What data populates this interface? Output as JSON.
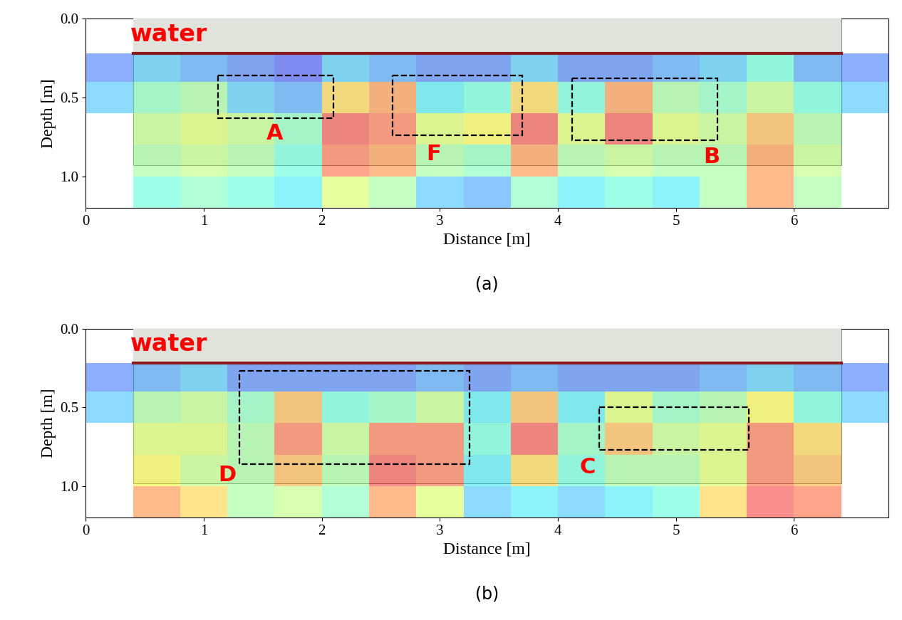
{
  "chart_data": [
    {
      "type": "heatmap",
      "panel_label": "(a)",
      "xlabel": "Distance [m]",
      "ylabel": "Depth [m]",
      "xlim": [
        0,
        6.8
      ],
      "ylim": [
        1.2,
        0.0
      ],
      "xticks": [
        0,
        1,
        2,
        3,
        4,
        5,
        6
      ],
      "yticks": [
        0.0,
        0.5,
        1.0
      ],
      "water": {
        "text": "water",
        "text_x": 0.38,
        "text_y": 0.1,
        "x": [
          0.4,
          6.4
        ],
        "depth": [
          0.0,
          0.22
        ]
      },
      "radargram": {
        "x": [
          0.4,
          6.4
        ],
        "depth": [
          0.0,
          0.93
        ]
      },
      "cells": {
        "x_edges": [
          0.0,
          0.4,
          0.8,
          1.2,
          1.6,
          2.0,
          2.4,
          2.8,
          3.2,
          3.6,
          4.0,
          4.4,
          4.8,
          5.2,
          5.6,
          6.0,
          6.4,
          6.8
        ],
        "depth_edges": [
          0.22,
          0.4,
          0.6,
          0.8,
          1.0,
          1.2
        ],
        "color_range": [
          0,
          1
        ],
        "values": [
          [
            0.2,
            0.3,
            0.25,
            0.2,
            0.15,
            0.3,
            0.25,
            0.2,
            0.2,
            0.3,
            0.2,
            0.2,
            0.25,
            0.3,
            0.4,
            0.25,
            0.2
          ],
          [
            0.3,
            0.45,
            0.5,
            0.3,
            0.25,
            0.7,
            0.8,
            0.35,
            0.4,
            0.7,
            0.4,
            0.8,
            0.5,
            0.45,
            0.55,
            0.4,
            0.3
          ],
          [
            null,
            0.55,
            0.6,
            0.55,
            0.45,
            0.9,
            0.85,
            0.6,
            0.65,
            0.9,
            0.6,
            0.9,
            0.6,
            0.55,
            0.75,
            0.5,
            null
          ],
          [
            null,
            0.5,
            0.55,
            0.5,
            0.4,
            0.85,
            0.8,
            0.5,
            0.45,
            0.8,
            0.5,
            0.55,
            0.5,
            0.5,
            0.8,
            0.55,
            null
          ],
          [
            null,
            0.4,
            0.45,
            0.4,
            0.35,
            0.6,
            0.5,
            0.3,
            0.25,
            0.45,
            0.35,
            0.4,
            0.35,
            0.5,
            0.8,
            0.5,
            null
          ]
        ]
      },
      "annotations": [
        {
          "text": "A",
          "x": 1.6,
          "y": 0.73,
          "box": [
            1.12,
            2.1,
            0.36,
            0.63
          ]
        },
        {
          "text": "F",
          "x": 2.95,
          "y": 0.86,
          "box": [
            2.6,
            3.7,
            0.36,
            0.74
          ]
        },
        {
          "text": "B",
          "x": 5.3,
          "y": 0.88,
          "box": [
            4.12,
            5.35,
            0.38,
            0.77
          ]
        }
      ]
    },
    {
      "type": "heatmap",
      "panel_label": "(b)",
      "xlabel": "Distance [m]",
      "ylabel": "Depth [m]",
      "xlim": [
        0,
        6.8
      ],
      "ylim": [
        1.2,
        0.0
      ],
      "xticks": [
        0,
        1,
        2,
        3,
        4,
        5,
        6
      ],
      "yticks": [
        0.0,
        0.5,
        1.0
      ],
      "water": {
        "text": "water",
        "text_x": 0.38,
        "text_y": 0.1,
        "x": [
          0.4,
          6.4
        ],
        "depth": [
          0.0,
          0.22
        ]
      },
      "radargram": {
        "x": [
          0.4,
          6.4
        ],
        "depth": [
          0.0,
          0.98
        ]
      },
      "cells": {
        "x_edges": [
          0.0,
          0.4,
          0.8,
          1.2,
          1.6,
          2.0,
          2.4,
          2.8,
          3.2,
          3.6,
          4.0,
          4.4,
          4.8,
          5.2,
          5.6,
          6.0,
          6.4,
          6.8
        ],
        "depth_edges": [
          0.22,
          0.4,
          0.6,
          0.8,
          1.0,
          1.2
        ],
        "color_range": [
          0,
          1
        ],
        "values": [
          [
            0.2,
            0.25,
            0.3,
            0.2,
            0.2,
            0.2,
            0.2,
            0.25,
            0.2,
            0.25,
            0.2,
            0.2,
            0.2,
            0.25,
            0.3,
            0.25,
            0.2
          ],
          [
            0.3,
            0.5,
            0.55,
            0.45,
            0.75,
            0.4,
            0.45,
            0.55,
            0.35,
            0.75,
            0.35,
            0.6,
            0.45,
            0.5,
            0.65,
            0.4,
            0.3
          ],
          [
            null,
            0.6,
            0.6,
            0.5,
            0.85,
            0.55,
            0.85,
            0.85,
            0.4,
            0.9,
            0.45,
            0.75,
            0.55,
            0.6,
            0.85,
            0.7,
            null
          ],
          [
            null,
            0.65,
            0.55,
            0.5,
            0.75,
            0.5,
            0.9,
            0.85,
            0.35,
            0.7,
            0.4,
            0.5,
            0.5,
            0.6,
            0.85,
            0.75,
            null
          ],
          [
            null,
            0.8,
            0.7,
            0.5,
            0.55,
            0.45,
            0.8,
            0.6,
            0.3,
            0.35,
            0.3,
            0.35,
            0.4,
            0.7,
            0.9,
            0.85,
            null
          ]
        ]
      },
      "annotations": [
        {
          "text": "D",
          "x": 1.2,
          "y": 0.93,
          "box": [
            1.3,
            3.25,
            0.27,
            0.86
          ]
        },
        {
          "text": "C",
          "x": 4.25,
          "y": 0.88,
          "box": [
            4.35,
            5.62,
            0.5,
            0.77
          ]
        }
      ]
    }
  ]
}
